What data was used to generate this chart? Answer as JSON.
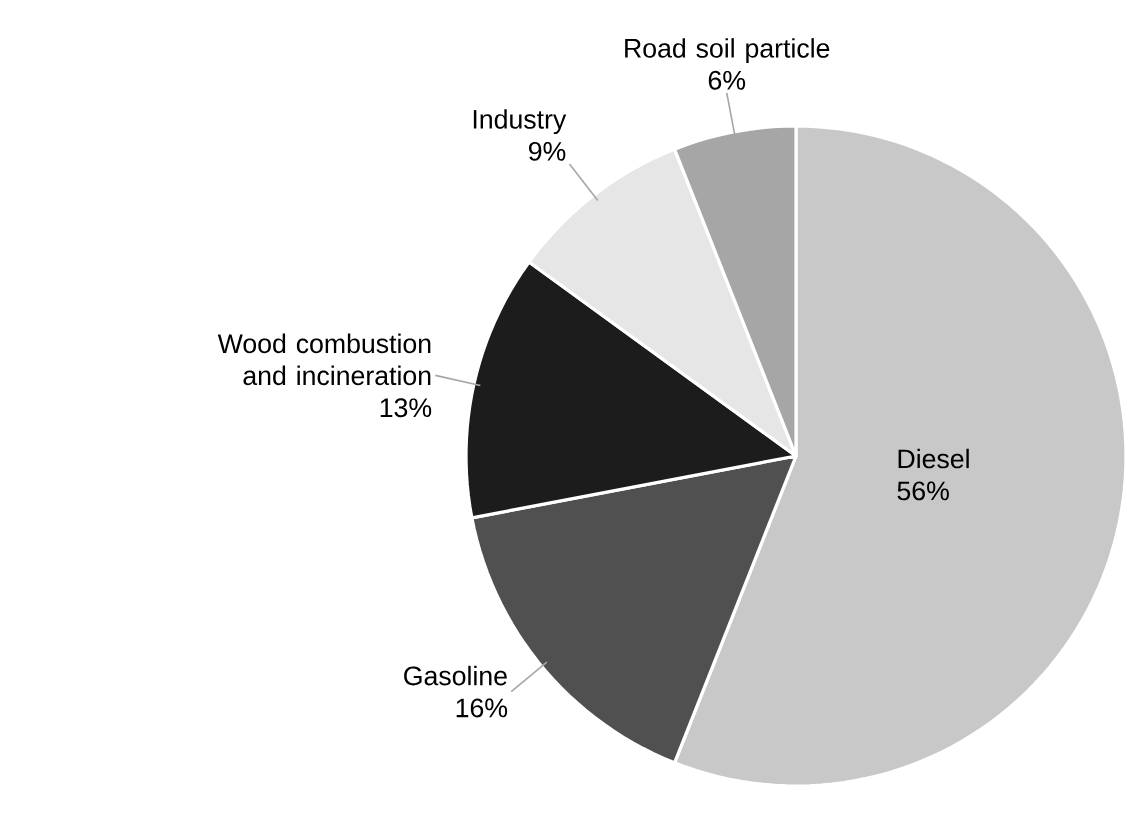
{
  "chart_data": {
    "type": "pie",
    "categories": [
      "Diesel",
      "Gasoline",
      "Wood combustion and incineration",
      "Industry",
      "Road soil particle"
    ],
    "values": [
      56,
      16,
      13,
      9,
      6
    ],
    "value_labels": [
      "56%",
      "16%",
      "13%",
      "9%",
      "6%"
    ],
    "colors": [
      "#c8c8c8",
      "#505050",
      "#1c1c1c",
      "#e6e6e6",
      "#a6a6a6"
    ]
  }
}
